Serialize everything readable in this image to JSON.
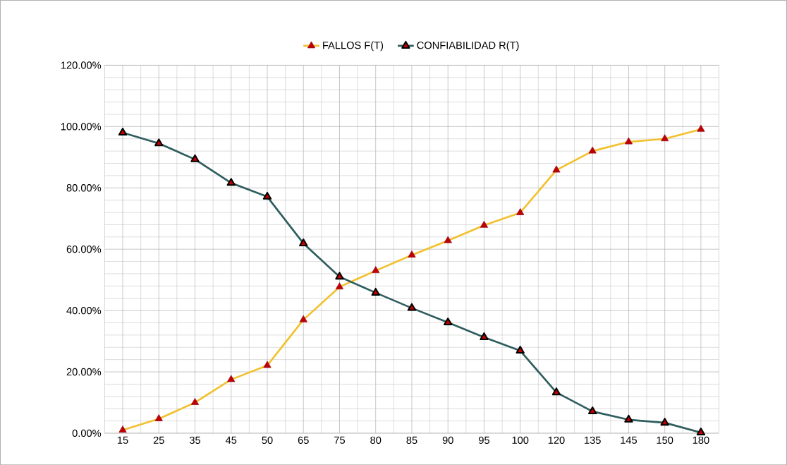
{
  "chart_data": {
    "type": "line",
    "categories": [
      "15",
      "25",
      "35",
      "45",
      "50",
      "65",
      "75",
      "80",
      "85",
      "90",
      "95",
      "100",
      "120",
      "135",
      "145",
      "150",
      "180"
    ],
    "series": [
      {
        "name": "FALLOS F(T)",
        "color": "#f2c12e",
        "values": [
          1.0,
          4.7,
          10.0,
          17.5,
          22.1,
          37.0,
          47.7,
          53.0,
          58.1,
          62.8,
          67.8,
          71.9,
          85.8,
          92.0,
          95.0,
          96.0,
          99.1
        ]
      },
      {
        "name": "CONFIABILIDAD R(T)",
        "color": "#2f5d5e",
        "values": [
          98.0,
          94.5,
          89.3,
          81.6,
          77.1,
          61.9,
          51.0,
          45.8,
          40.8,
          36.1,
          31.3,
          26.9,
          13.3,
          7.1,
          4.4,
          3.4,
          0.2
        ]
      }
    ],
    "ylim": [
      0,
      120
    ],
    "yticks": [
      {
        "value": 0,
        "label": "0.00%"
      },
      {
        "value": 20,
        "label": "20.00%"
      },
      {
        "value": 40,
        "label": "40.00%"
      },
      {
        "value": 60,
        "label": "60.00%"
      },
      {
        "value": 80,
        "label": "80.00%"
      },
      {
        "value": 100,
        "label": "100.00%"
      },
      {
        "value": 120,
        "label": "120.00%"
      }
    ],
    "grid": true,
    "legend": "top",
    "marker": "triangle",
    "line_style": "solid"
  }
}
